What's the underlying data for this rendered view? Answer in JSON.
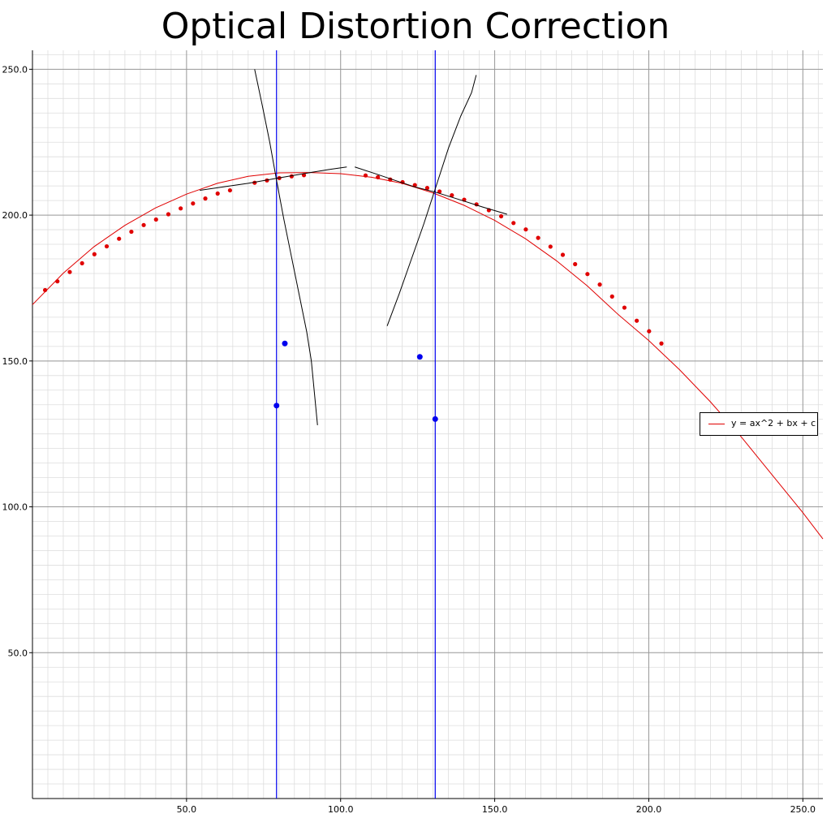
{
  "chart_data": {
    "type": "scatter",
    "title": "Optical Distortion Correction",
    "xlabel": "",
    "ylabel": "",
    "xlim": [
      0,
      256.5
    ],
    "ylim": [
      0,
      256.5
    ],
    "x_ticks": [
      50.0,
      100.0,
      150.0,
      200.0,
      250.0
    ],
    "y_ticks": [
      50.0,
      100.0,
      150.0,
      200.0,
      250.0
    ],
    "x_tick_labels": [
      "50.0",
      "100.0",
      "150.0",
      "200.0",
      "250.0"
    ],
    "y_tick_labels": [
      "50.0",
      "100.0",
      "150.0",
      "200.0",
      "250.0"
    ],
    "grid": true,
    "minor_grid_step": 5,
    "legend_position": "right",
    "colors": {
      "fit": "#e00000",
      "points": "#e00000",
      "markers": "#0000ee",
      "tangents": "#000000",
      "major_grid": "#999999",
      "minor_grid": "#dddddd"
    },
    "series": [
      {
        "name": "y = ax^2 + bx + c",
        "type": "line",
        "color": "#e00000",
        "x": [
          0,
          10,
          20,
          30,
          40,
          50,
          60,
          70,
          80,
          90,
          100,
          110,
          120,
          130,
          140,
          150,
          160,
          170,
          180,
          190,
          200,
          210,
          220,
          230,
          240,
          250,
          256.5
        ],
        "y": [
          169.3,
          180.1,
          189.2,
          196.5,
          202.5,
          207.2,
          210.9,
          213.3,
          214.5,
          214.6,
          214.2,
          213.0,
          210.9,
          207.6,
          203.4,
          198.2,
          191.9,
          184.4,
          175.8,
          166.0,
          157.0,
          147.0,
          136.0,
          124.0,
          111.0,
          98.0,
          89.0
        ]
      },
      {
        "type": "scatter",
        "color": "#e00000",
        "x": [
          4.1,
          8.1,
          12.1,
          16.1,
          20.1,
          24.1,
          28.1,
          32.1,
          36.1,
          40.1,
          44.1,
          48.1,
          52.1,
          56.1,
          60.1,
          64.1,
          72.1,
          76.1,
          80.1,
          84.1,
          88.1,
          108.1,
          112.1,
          116.1,
          120.1,
          124.1,
          128.1,
          132.1,
          136.1,
          140.1,
          144.1,
          148.1,
          152.1,
          156.1,
          160.1,
          164.1,
          168.1,
          172.1,
          176.1,
          180.1,
          184.1,
          188.1,
          192.1,
          196.1,
          200.1,
          204.1
        ],
        "y": [
          174.3,
          177.3,
          180.5,
          183.5,
          186.6,
          189.3,
          191.9,
          194.3,
          196.6,
          198.5,
          200.3,
          202.3,
          204.0,
          205.7,
          207.4,
          208.5,
          211.1,
          211.9,
          212.7,
          213.3,
          213.7,
          213.6,
          213.0,
          212.2,
          211.3,
          210.3,
          209.3,
          208.1,
          206.8,
          205.3,
          203.7,
          201.7,
          199.6,
          197.3,
          195.1,
          192.2,
          189.2,
          186.4,
          183.2,
          179.8,
          176.2,
          172.1,
          168.3,
          163.8,
          160.2,
          156.0
        ]
      },
      {
        "type": "vline",
        "color": "#0000ee",
        "x": [
          79.2,
          130.7
        ]
      },
      {
        "type": "scatter",
        "color": "#0000ee",
        "x": [
          79.2,
          81.9,
          125.7,
          130.7
        ],
        "y": [
          134.7,
          156.0,
          151.4,
          130.1
        ]
      },
      {
        "type": "tangent",
        "color": "#000000",
        "segments": [
          {
            "x": [
              72.1,
              74.5,
              77.0,
              79.2,
              81.5,
              84.0,
              86.5,
              89.0,
              90.5,
              92.5
            ],
            "y": [
              250.0,
              238.0,
              225.0,
              212.0,
              199.0,
              186.0,
              173.0,
              160.0,
              150.0,
              128.0
            ]
          },
          {
            "x": [
              54.3,
              62.0,
              70.0,
              79.2,
              88.0,
              96.0,
              102.0
            ],
            "y": [
              208.5,
              209.7,
              210.9,
              212.6,
              214.2,
              215.6,
              216.5
            ]
          },
          {
            "x": [
              104.6,
              111.0,
              118.0,
              124.0,
              130.7,
              138.0,
              146.0,
              154.0
            ],
            "y": [
              216.5,
              214.3,
              211.8,
              209.7,
              207.9,
              205.5,
              202.8,
              200.3
            ]
          },
          {
            "x": [
              115.1,
              119.0,
              123.0,
              127.0,
              130.7,
              135.0,
              139.0,
              142.5,
              144.0
            ],
            "y": [
              162.0,
              173.0,
              185.0,
              197.0,
              209.0,
              223.0,
              234.0,
              242.0,
              248.0
            ]
          }
        ]
      }
    ]
  }
}
